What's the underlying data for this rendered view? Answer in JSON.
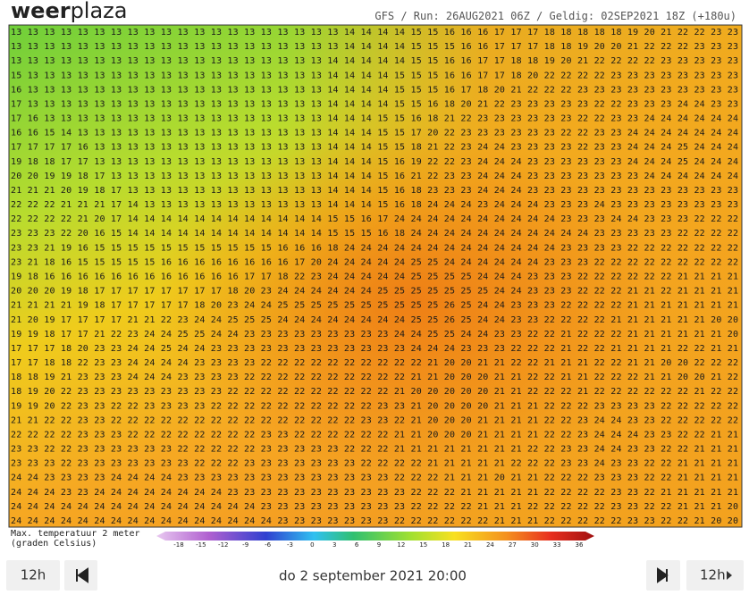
{
  "header": {
    "logo_bold": "weer",
    "logo_light": "plaza",
    "subtitle": "GFS / Run: 26AUG2021 06Z / Geldig: 02SEP2021 18Z (+180u)"
  },
  "map": {
    "rows": [
      "13 13 13 13 13 13 13 13 13 13 13 13 13 13 13 13 13 13 13 13 14 14 14 14 15 15 16 16 16 17 17 17 18 18 18 18 18 19 20 21 22 22 23 23",
      "13 13 13 13 13 13 13 13 13 13 13 13 13 13 13 13 13 13 13 13 14 14 14 14 15 15 15 16 16 17 17 17 18 18 19 20 20 21 22 22 22 23 23 23",
      "13 13 13 13 13 13 13 13 13 13 13 13 13 13 13 13 13 13 13 14 14 14 14 14 15 15 16 16 17 17 18 18 19 20 21 22 22 22 22 23 23 23 23 23",
      "15 13 13 13 13 13 13 13 13 13 13 13 13 13 13 13 13 13 13 14 14 14 14 15 15 15 16 16 17 17 18 20 22 22 22 22 23 23 23 23 23 23 23 23",
      "16 13 13 13 13 13 13 13 13 13 13 13 13 13 13 13 13 13 13 14 14 14 14 15 15 15 16 17 18 20 21 22 22 22 23 23 23 23 23 23 23 23 23 23",
      "17 13 13 13 13 13 13 13 13 13 13 13 13 13 13 13 13 13 13 14 14 14 14 15 15 16 18 20 21 22 23 23 23 23 23 22 22 23 23 23 24 24 23 23",
      "17 16 13 13 13 13 13 13 13 13 13 13 13 13 13 13 13 13 13 14 14 14 15 15 16 18 21 22 23 23 23 23 23 23 22 22 23 23 24 24 24 24 24 24",
      "16 16 15 14 13 13 13 13 13 13 13 13 13 13 13 13 13 13 13 14 14 14 15 15 17 20 22 23 23 23 23 23 23 22 22 23 23 24 24 24 24 24 24 24",
      "17 17 17 17 16 13 13 13 13 13 13 13 13 13 13 13 13 13 13 14 14 14 15 15 18 21 22 23 24 24 23 23 23 23 22 23 23 24 24 24 25 24 24 24",
      "19 18 18 17 17 13 13 13 13 13 13 13 13 13 13 13 13 13 13 14 14 14 15 16 19 22 22 23 24 24 24 23 23 23 23 23 23 24 24 24 25 24 24 24",
      "20 20 19 19 18 17 13 13 13 13 13 13 13 13 13 13 13 13 13 14 14 14 15 16 21 22 23 23 24 24 24 23 23 23 23 23 23 23 24 24 24 24 24 24",
      "21 21 21 20 19 18 17 13 13 13 13 13 13 13 13 13 13 13 13 14 14 14 15 16 18 23 23 23 24 24 24 23 23 23 23 23 23 23 23 23 23 23 23 23",
      "22 22 22 21 21 21 17 14 13 13 13 13 13 13 13 13 13 13 13 14 14 14 15 16 18 24 24 24 23 24 24 24 23 23 23 24 23 23 23 23 23 23 23 23",
      "22 22 22 22 21 20 17 14 14 14 14 14 14 14 14 14 14 14 14 15 15 16 17 24 24 24 24 24 24 24 24 24 24 23 23 23 24 24 23 23 23 22 22 22",
      "23 23 23 22 20 16 15 14 14 14 14 14 14 14 14 14 14 14 14 15 15 15 16 18 24 24 24 24 24 24 24 24 24 24 24 23 23 23 23 23 22 22 22 22",
      "23 23 21 19 16 15 15 15 15 15 15 15 15 15 15 15 16 16 16 18 24 24 24 24 24 24 24 24 24 24 24 24 24 23 23 23 23 22 22 22 22 22 22 22",
      "23 21 18 16 15 15 15 15 15 16 16 16 16 16 16 16 16 17 20 24 24 24 24 24 25 25 24 24 24 24 24 24 23 23 23 22 22 22 22 22 22 22 22 22",
      "19 18 16 16 16 16 16 16 16 16 16 16 16 16 17 17 18 22 23 24 24 24 24 24 25 25 25 25 24 24 24 23 23 23 22 22 22 22 22 22 21 21 21 21",
      "20 20 20 19 18 17 17 17 17 17 17 17 17 18 20 23 24 24 24 24 24 24 25 25 25 25 25 25 25 24 24 23 23 23 22 22 22 21 21 22 21 21 21 21",
      "21 21 21 21 19 18 17 17 17 17 17 18 20 23 24 24 25 25 25 25 25 25 25 25 25 25 26 25 24 24 23 23 23 22 22 22 22 21 21 21 21 21 21 21",
      "21 20 19 17 17 17 17 21 21 22 23 24 24 25 25 25 24 24 24 24 24 24 24 24 25 25 26 25 24 24 23 23 22 22 22 22 21 21 21 21 21 21 20 20",
      "19 19 18 17 17 21 22 23 24 24 25 25 24 24 23 23 23 23 23 23 23 23 23 24 24 25 25 24 24 23 23 22 22 21 22 22 22 21 21 21 21 21 21 20",
      "17 17 17 18 20 23 23 24 24 25 24 24 23 23 23 23 23 23 23 23 23 23 23 23 24 24 24 23 23 23 22 22 22 21 22 22 21 21 21 21 22 22 21 21",
      "17 17 18 18 22 23 23 24 24 24 24 23 23 23 23 22 22 22 22 22 22 22 22 22 22 21 20 20 21 21 22 22 21 21 21 22 22 21 21 20 20 22 22 22",
      "18 18 19 21 23 23 23 24 24 24 23 23 23 23 22 22 22 22 22 22 22 22 22 22 21 21 20 20 20 21 21 22 22 21 21 22 22 22 21 21 20 20 21 22",
      "18 19 20 22 23 23 23 23 23 23 23 23 23 22 22 22 22 22 22 22 22 22 22 21 20 20 20 20 20 21 21 22 22 22 21 22 22 22 22 22 22 21 22 22",
      "19 19 20 22 23 23 22 22 23 23 23 23 22 22 22 22 22 22 22 22 22 22 23 23 21 20 20 20 20 21 21 21 22 22 22 23 23 23 23 22 22 22 22 22",
      "21 21 22 22 23 23 22 22 22 22 22 22 22 22 22 22 22 22 22 22 22 23 23 22 21 20 20 20 21 21 21 21 22 22 23 24 24 23 23 22 22 22 22 22",
      "22 22 22 22 23 23 23 22 22 22 22 22 22 22 22 23 23 22 22 22 22 22 22 21 21 20 20 20 21 21 21 21 22 22 23 24 24 24 23 23 22 22 21 21",
      "23 23 22 22 23 23 23 23 23 23 22 22 22 22 22 23 23 23 23 23 22 22 22 21 21 21 21 21 21 21 21 22 22 23 23 24 24 23 23 22 22 21 21 21",
      "23 23 23 22 23 23 23 23 23 23 23 22 22 22 23 23 23 23 23 23 23 22 22 22 22 21 21 21 21 21 22 22 22 23 23 24 23 23 22 22 21 21 21 21",
      "24 24 23 23 23 23 24 24 24 24 23 23 23 23 23 23 23 23 23 23 23 23 23 22 22 22 21 21 21 20 21 21 22 22 22 23 23 23 22 22 21 21 21 21",
      "24 24 24 23 23 24 24 24 24 24 24 24 24 23 23 23 23 23 23 23 23 23 23 23 22 22 22 21 21 21 21 21 22 22 22 22 23 23 22 21 21 21 21 21",
      "24 24 24 24 24 24 24 24 24 24 24 24 24 24 24 23 23 23 23 23 23 23 23 23 22 22 22 22 21 21 21 22 22 22 22 22 23 23 22 22 21 21 21 20",
      "24 24 24 24 24 24 24 24 24 24 24 24 24 24 24 24 23 23 23 23 23 23 23 22 22 22 22 22 22 21 21 21 22 22 22 22 22 23 23 22 22 21 20 20"
    ]
  },
  "legend": {
    "title_line1": "Max. temperatuur 2 meter",
    "title_line2": "(graden Celsius)",
    "labels": [
      -18,
      -15,
      -12,
      -9,
      -6,
      -3,
      0,
      3,
      6,
      9,
      12,
      15,
      18,
      21,
      24,
      27,
      30,
      33,
      36
    ]
  },
  "footer": {
    "step_back": "12h",
    "datetime": "do 2 september 2021 20:00",
    "step_forward": "12h"
  }
}
